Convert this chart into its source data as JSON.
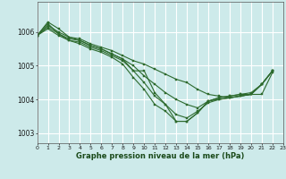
{
  "xlabel": "Graphe pression niveau de la mer (hPa)",
  "background_color": "#cdeaea",
  "grid_color": "#ffffff",
  "line_color": "#2d6a2d",
  "marker_color": "#2d6a2d",
  "xlim": [
    0,
    23
  ],
  "ylim": [
    1002.7,
    1006.9
  ],
  "yticks": [
    1003,
    1004,
    1005,
    1006
  ],
  "xticks": [
    0,
    1,
    2,
    3,
    4,
    5,
    6,
    7,
    8,
    9,
    10,
    11,
    12,
    13,
    14,
    15,
    16,
    17,
    18,
    19,
    20,
    21,
    22,
    23
  ],
  "series": [
    {
      "x": [
        0,
        1,
        2,
        3,
        4,
        5,
        6,
        7,
        8,
        9,
        10,
        11,
        12,
        13,
        14,
        15,
        16,
        17,
        18,
        19,
        20,
        21,
        22
      ],
      "y": [
        1005.9,
        1006.3,
        1006.1,
        1005.85,
        1005.8,
        1005.65,
        1005.55,
        1005.45,
        1005.3,
        1005.15,
        1005.05,
        1004.9,
        1004.75,
        1004.6,
        1004.5,
        1004.3,
        1004.15,
        1004.1,
        1004.05,
        1004.1,
        1004.15,
        1004.15,
        1004.8
      ]
    },
    {
      "x": [
        0,
        1,
        2,
        3,
        4,
        5,
        6,
        7,
        8,
        9,
        10,
        11,
        12,
        13,
        14,
        15,
        16,
        17,
        18,
        19,
        20,
        21,
        22
      ],
      "y": [
        1005.9,
        1006.2,
        1006.0,
        1005.85,
        1005.75,
        1005.6,
        1005.5,
        1005.35,
        1005.2,
        1005.0,
        1004.7,
        1004.45,
        1004.2,
        1004.0,
        1003.85,
        1003.75,
        1003.95,
        1004.0,
        1004.05,
        1004.1,
        1004.15,
        1004.45,
        1004.85
      ]
    },
    {
      "x": [
        0,
        1,
        2,
        3,
        4,
        5,
        6,
        7,
        8,
        9,
        10,
        11,
        12,
        13,
        14,
        15,
        16,
        17,
        18,
        19,
        20,
        21,
        22
      ],
      "y": [
        1005.9,
        1006.15,
        1005.95,
        1005.75,
        1005.7,
        1005.55,
        1005.45,
        1005.3,
        1005.15,
        1004.85,
        1004.5,
        1004.1,
        1003.85,
        1003.55,
        1003.45,
        1003.65,
        1003.9,
        1004.0,
        1004.05,
        1004.1,
        1004.15,
        1004.45,
        1004.85
      ]
    },
    {
      "x": [
        0,
        1,
        2,
        3,
        4,
        5,
        6,
        7,
        8,
        9,
        10,
        11,
        12,
        13,
        14,
        15,
        16,
        17,
        18,
        19,
        20,
        21,
        22
      ],
      "y": [
        1005.9,
        1006.1,
        1005.9,
        1005.75,
        1005.65,
        1005.5,
        1005.4,
        1005.25,
        1005.05,
        1004.65,
        1004.3,
        1003.85,
        1003.65,
        1003.35,
        1003.35,
        1003.6,
        1003.95,
        1004.05,
        1004.1,
        1004.15,
        1004.15,
        1004.45,
        1004.85
      ]
    },
    {
      "x": [
        0,
        1,
        2,
        3,
        4,
        5,
        6,
        7,
        8,
        9,
        10,
        11,
        12,
        13,
        14,
        15,
        16,
        17,
        18,
        19,
        20,
        21,
        22
      ],
      "y": [
        1005.9,
        1006.25,
        1005.95,
        1005.8,
        1005.75,
        1005.6,
        1005.5,
        1005.35,
        1005.2,
        1004.85,
        1004.85,
        1004.2,
        1003.85,
        1003.35,
        1003.35,
        1003.6,
        1003.95,
        1004.05,
        1004.1,
        1004.15,
        1004.2,
        1004.45,
        1004.85
      ]
    }
  ]
}
